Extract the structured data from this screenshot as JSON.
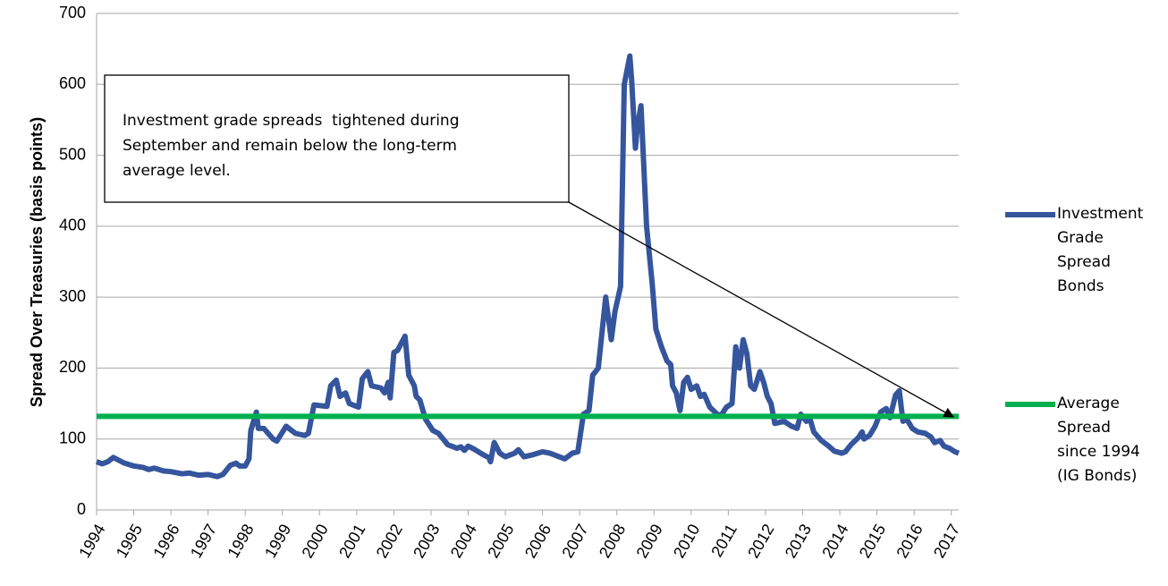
{
  "chart_data": {
    "type": "line",
    "y_label": "Spread Over Treasuries (basis points)",
    "ylim": [
      0,
      700
    ],
    "yticks": [
      0,
      100,
      200,
      300,
      400,
      500,
      600,
      700
    ],
    "xlim": [
      1994,
      2017.2
    ],
    "xticks": [
      1994,
      1995,
      1996,
      1997,
      1998,
      1999,
      2000,
      2001,
      2002,
      2003,
      2004,
      2005,
      2006,
      2007,
      2008,
      2009,
      2010,
      2011,
      2012,
      2013,
      2014,
      2015,
      2016,
      2017
    ],
    "grid": true,
    "legend": "right",
    "annotation": {
      "lines": [
        "Investment grade spreads  tightened during",
        "September and remain below the long-term",
        "average level."
      ]
    },
    "series": [
      {
        "name": "Investment Grade Spread Bonds",
        "color": "#35559c",
        "x": [
          1994.0,
          1994.15,
          1994.3,
          1994.45,
          1994.6,
          1994.75,
          1995.0,
          1995.25,
          1995.4,
          1995.55,
          1995.8,
          1996.0,
          1996.3,
          1996.5,
          1996.75,
          1997.0,
          1997.25,
          1997.4,
          1997.6,
          1997.75,
          1997.85,
          1998.0,
          1998.1,
          1998.15,
          1998.3,
          1998.35,
          1998.5,
          1998.75,
          1998.85,
          1999.1,
          1999.35,
          1999.6,
          1999.7,
          1999.85,
          2000.2,
          2000.3,
          2000.45,
          2000.55,
          2000.7,
          2000.8,
          2001.05,
          2001.15,
          2001.3,
          2001.4,
          2001.65,
          2001.75,
          2001.85,
          2001.9,
          2002.0,
          2002.1,
          2002.3,
          2002.4,
          2002.55,
          2002.6,
          2002.7,
          2002.85,
          2003.05,
          2003.2,
          2003.45,
          2003.7,
          2003.8,
          2003.9,
          2004.0,
          2004.15,
          2004.4,
          2004.55,
          2004.6,
          2004.7,
          2004.85,
          2005.0,
          2005.25,
          2005.35,
          2005.5,
          2005.75,
          2006.0,
          2006.2,
          2006.45,
          2006.6,
          2006.8,
          2006.95,
          2007.1,
          2007.25,
          2007.35,
          2007.5,
          2007.6,
          2007.7,
          2007.85,
          2007.95,
          2008.1,
          2008.2,
          2008.35,
          2008.4,
          2008.5,
          2008.55,
          2008.65,
          2008.8,
          2008.95,
          2009.05,
          2009.2,
          2009.35,
          2009.45,
          2009.5,
          2009.6,
          2009.7,
          2009.8,
          2009.9,
          2010.0,
          2010.15,
          2010.25,
          2010.35,
          2010.5,
          2010.7,
          2010.8,
          2010.95,
          2011.1,
          2011.2,
          2011.3,
          2011.4,
          2011.5,
          2011.6,
          2011.7,
          2011.85,
          2011.95,
          2012.05,
          2012.15,
          2012.25,
          2012.5,
          2012.7,
          2012.85,
          2012.95,
          2013.1,
          2013.2,
          2013.3,
          2013.5,
          2013.7,
          2013.85,
          2014.05,
          2014.15,
          2014.3,
          2014.5,
          2014.6,
          2014.65,
          2014.8,
          2014.95,
          2015.1,
          2015.25,
          2015.35,
          2015.5,
          2015.6,
          2015.7,
          2015.8,
          2015.95,
          2016.1,
          2016.3,
          2016.45,
          2016.55,
          2016.7,
          2016.8,
          2016.95,
          2017.1,
          2017.2
        ],
        "values": [
          68,
          65,
          68,
          74,
          70,
          66,
          62,
          60,
          57,
          59,
          55,
          54,
          51,
          52,
          49,
          50,
          47,
          50,
          63,
          66,
          62,
          62,
          72,
          112,
          138,
          115,
          115,
          100,
          97,
          118,
          108,
          105,
          108,
          148,
          146,
          175,
          183,
          160,
          165,
          150,
          145,
          185,
          195,
          175,
          172,
          165,
          180,
          158,
          222,
          225,
          245,
          190,
          175,
          160,
          155,
          128,
          112,
          108,
          92,
          87,
          89,
          84,
          90,
          86,
          78,
          74,
          68,
          95,
          80,
          75,
          80,
          85,
          75,
          78,
          82,
          80,
          75,
          72,
          80,
          82,
          135,
          140,
          190,
          200,
          250,
          300,
          240,
          280,
          315,
          600,
          640,
          605,
          510,
          540,
          570,
          400,
          320,
          255,
          230,
          210,
          205,
          175,
          165,
          140,
          180,
          187,
          170,
          175,
          160,
          163,
          145,
          135,
          133,
          145,
          150,
          230,
          200,
          240,
          220,
          175,
          170,
          195,
          180,
          160,
          150,
          122,
          125,
          118,
          115,
          135,
          125,
          128,
          110,
          98,
          90,
          83,
          80,
          82,
          92,
          102,
          110,
          100,
          105,
          118,
          138,
          143,
          130,
          162,
          168,
          125,
          128,
          115,
          110,
          108,
          103,
          95,
          98,
          90,
          87,
          82,
          80
        ]
      },
      {
        "name": "Average Spread since 1994 (IG Bonds)",
        "color": "#00b050",
        "x": [
          1994,
          2017.2
        ],
        "values": [
          132,
          132
        ]
      }
    ]
  }
}
